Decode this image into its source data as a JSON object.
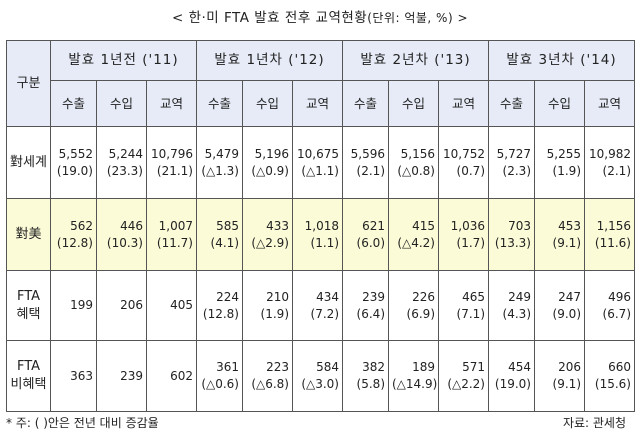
{
  "title": "< 한·미 FTA 발효 전후 교역현황",
  "title_unit": "(단위: 억불, %) >",
  "header": {
    "gubun": "구분",
    "periods": [
      "발효 1년전 ('11)",
      "발효 1년차 ('12)",
      "발효 2년차 ('13)",
      "발효 3년차 ('14)"
    ],
    "sub": [
      "수출",
      "수입",
      "교역"
    ]
  },
  "rows": [
    {
      "label": "對세계",
      "cells": [
        {
          "v": "5,552",
          "p": "(19.0)"
        },
        {
          "v": "5,244",
          "p": "(23.3)"
        },
        {
          "v": "10,796",
          "p": "(21.1)"
        },
        {
          "v": "5,479",
          "p": "(△1.3)"
        },
        {
          "v": "5,196",
          "p": "(△0.9)"
        },
        {
          "v": "10,675",
          "p": "(△1.1)"
        },
        {
          "v": "5,596",
          "p": "(2.1)"
        },
        {
          "v": "5,156",
          "p": "(△0.8)"
        },
        {
          "v": "10,752",
          "p": "(0.7)"
        },
        {
          "v": "5,727",
          "p": "(2.3)"
        },
        {
          "v": "5,255",
          "p": "(1.9)"
        },
        {
          "v": "10,982",
          "p": "(2.1)"
        }
      ]
    },
    {
      "label": "對美",
      "cells": [
        {
          "v": "562",
          "p": "(12.8)"
        },
        {
          "v": "446",
          "p": "(10.3)"
        },
        {
          "v": "1,007",
          "p": "(11.7)"
        },
        {
          "v": "585",
          "p": "(4.1)"
        },
        {
          "v": "433",
          "p": "(△2.9)"
        },
        {
          "v": "1,018",
          "p": "(1.1)"
        },
        {
          "v": "621",
          "p": "(6.0)"
        },
        {
          "v": "415",
          "p": "(△4.2)"
        },
        {
          "v": "1,036",
          "p": "(1.7)"
        },
        {
          "v": "703",
          "p": "(13.3)"
        },
        {
          "v": "453",
          "p": "(9.1)"
        },
        {
          "v": "1,156",
          "p": "(11.6)"
        }
      ]
    },
    {
      "label": "FTA 혜택",
      "cells": [
        {
          "v": "199",
          "p": ""
        },
        {
          "v": "206",
          "p": ""
        },
        {
          "v": "405",
          "p": ""
        },
        {
          "v": "224",
          "p": "(12.8)"
        },
        {
          "v": "210",
          "p": "(1.9)"
        },
        {
          "v": "434",
          "p": "(7.2)"
        },
        {
          "v": "239",
          "p": "(6.4)"
        },
        {
          "v": "226",
          "p": "(6.9)"
        },
        {
          "v": "465",
          "p": "(7.1)"
        },
        {
          "v": "249",
          "p": "(4.3)"
        },
        {
          "v": "247",
          "p": "(9.0)"
        },
        {
          "v": "496",
          "p": "(6.7)"
        }
      ]
    },
    {
      "label": "FTA 비혜택",
      "cells": [
        {
          "v": "363",
          "p": ""
        },
        {
          "v": "239",
          "p": ""
        },
        {
          "v": "602",
          "p": ""
        },
        {
          "v": "361",
          "p": "(△0.6)"
        },
        {
          "v": "223",
          "p": "(△6.8)"
        },
        {
          "v": "584",
          "p": "(△3.0)"
        },
        {
          "v": "382",
          "p": "(5.8)"
        },
        {
          "v": "189",
          "p": "(△14.9)"
        },
        {
          "v": "571",
          "p": "(△2.2)"
        },
        {
          "v": "454",
          "p": "(19.0)"
        },
        {
          "v": "206",
          "p": "(9.1)"
        },
        {
          "v": "660",
          "p": "(15.6)"
        }
      ]
    }
  ],
  "footnote": "* 주: ( )안은 전년 대비 증감율",
  "source": "자료: 관세청"
}
